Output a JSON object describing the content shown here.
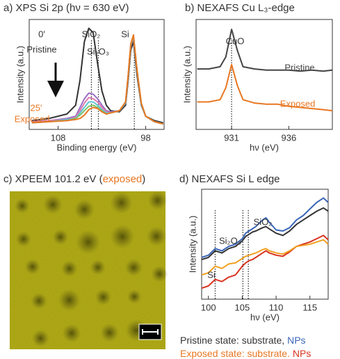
{
  "chart_data": [
    {
      "type": "line",
      "title": "a) XPS Si 2p (hν = 630 eV)",
      "xlabel": "Binding energy (eV)",
      "ylabel": "Intensity (a.u.)",
      "xlim": [
        111.3,
        95.9
      ],
      "xticks": [
        108,
        98
      ],
      "ylim": [
        0,
        100
      ],
      "vlines": [
        104.2,
        103.4,
        99.3
      ],
      "x": [
        111,
        109,
        107,
        106,
        105.5,
        105,
        104.5,
        104,
        103.5,
        103,
        102.5,
        102,
        101,
        100.3,
        100,
        99.7,
        99.4,
        99,
        98.5,
        98,
        97,
        96
      ],
      "series": [
        {
          "color": "#333333",
          "values": [
            8,
            10,
            14,
            22,
            45,
            80,
            92,
            88,
            60,
            35,
            22,
            17,
            16,
            22,
            45,
            72,
            80,
            50,
            22,
            12,
            8,
            6
          ]
        },
        {
          "color": "#9b6fc4",
          "values": [
            7,
            8,
            10,
            12,
            20,
            28,
            33,
            32,
            28,
            22,
            17,
            16,
            17,
            24,
            48,
            76,
            84,
            54,
            23,
            12,
            7,
            5
          ]
        },
        {
          "color": "#e07ab0",
          "values": [
            7,
            8,
            9,
            11,
            17,
            24,
            29,
            28,
            25,
            20,
            16,
            15,
            17,
            24,
            48,
            76,
            84,
            54,
            23,
            12,
            7,
            5
          ]
        },
        {
          "color": "#5fc4d0",
          "values": [
            6,
            7,
            9,
            10,
            15,
            20,
            25,
            25,
            22,
            18,
            15,
            15,
            17,
            24,
            49,
            77,
            85,
            54,
            23,
            12,
            7,
            5
          ]
        },
        {
          "color": "#7cc46a",
          "values": [
            6,
            7,
            8,
            10,
            13,
            17,
            21,
            22,
            20,
            17,
            14,
            15,
            17,
            25,
            49,
            77,
            85,
            55,
            24,
            12,
            7,
            5
          ]
        },
        {
          "color": "#e87722",
          "values": [
            6,
            7,
            8,
            9,
            10,
            13,
            18,
            20,
            19,
            16,
            14,
            15,
            17,
            25,
            50,
            78,
            86,
            55,
            24,
            12,
            7,
            5
          ]
        }
      ],
      "annotations": [
        {
          "text": "0'",
          "color": "#333333"
        },
        {
          "text": "Pristine",
          "color": "#333333"
        },
        {
          "text": "25'",
          "color": "#e87722"
        },
        {
          "text": "Exposed",
          "color": "#e87722"
        },
        {
          "text": "SiO₂",
          "color": "#333333"
        },
        {
          "text": "Si₂O₃",
          "color": "#333333"
        },
        {
          "text": "Si",
          "color": "#333333"
        }
      ]
    },
    {
      "type": "line",
      "title": "b) NEXAFS Cu L₃-edge",
      "xlabel": "hν (eV)",
      "ylabel": "Intensity (a.u.)",
      "xlim": [
        927.9,
        939.8
      ],
      "xticks": [
        931,
        936
      ],
      "ylim": [
        0,
        100
      ],
      "vlines": [
        931
      ],
      "x": [
        928,
        929,
        930,
        930.5,
        931,
        931.5,
        932,
        933,
        934,
        935,
        936,
        937,
        938,
        939,
        939.8
      ],
      "series": [
        {
          "color": "#444444",
          "values": [
            55,
            55,
            57,
            66,
            91,
            72,
            57,
            55,
            54,
            54,
            54,
            53,
            54,
            53,
            54
          ]
        },
        {
          "color": "#e87722",
          "values": [
            25,
            25,
            27,
            38,
            59,
            40,
            27,
            24,
            23,
            23,
            21,
            20,
            19,
            18,
            17
          ]
        }
      ],
      "annotations": [
        {
          "text": "CuO",
          "color": "#333333"
        },
        {
          "text": "Pristine",
          "color": "#444444"
        },
        {
          "text": "Exposed",
          "color": "#e87722"
        }
      ]
    },
    {
      "type": "image",
      "title_parts": [
        {
          "text": "c) XPEEM 101.2 eV (",
          "color": "#333333"
        },
        {
          "text": "exposed",
          "color": "#e87722"
        },
        {
          "text": ")",
          "color": "#333333"
        }
      ]
    },
    {
      "type": "line",
      "title": "d) NEXAFS Si L edge",
      "xlabel": "hν (eV)",
      "ylabel": "Intensity (a.u.)",
      "xlim": [
        99,
        117.7
      ],
      "xticks": [
        100,
        105,
        110,
        115
      ],
      "ylim": [
        0,
        100
      ],
      "vlines": [
        101,
        105.1,
        105.9
      ],
      "x": [
        99,
        100,
        101,
        102,
        103,
        104,
        105,
        105.5,
        106,
        106.5,
        107,
        108,
        108.5,
        109,
        110,
        111,
        112,
        113,
        114,
        115,
        116,
        117,
        117.7
      ],
      "series": [
        {
          "color": "#3a66b8",
          "values": [
            38,
            40,
            46,
            44,
            48,
            50,
            55,
            60,
            62,
            64,
            66,
            72,
            74,
            70,
            63,
            62,
            65,
            72,
            76,
            82,
            88,
            92,
            88
          ]
        },
        {
          "color": "#333333",
          "values": [
            36,
            38,
            44,
            42,
            46,
            48,
            53,
            57,
            59,
            61,
            62,
            65,
            66,
            64,
            60,
            58,
            62,
            68,
            72,
            76,
            80,
            83,
            80
          ]
        },
        {
          "color": "#d9331f",
          "values": [
            10,
            12,
            18,
            16,
            20,
            22,
            30,
            33,
            35,
            36,
            38,
            42,
            44,
            42,
            40,
            39,
            43,
            48,
            50,
            52,
            55,
            58,
            54
          ]
        },
        {
          "color": "#f0a020",
          "values": [
            22,
            24,
            30,
            28,
            32,
            33,
            37,
            39,
            40,
            41,
            42,
            45,
            46,
            44,
            42,
            41,
            44,
            48,
            49,
            50,
            52,
            54,
            50
          ]
        }
      ],
      "annotations": [
        {
          "text": "Si",
          "color": "#333333"
        },
        {
          "text": "Si₂O₃",
          "color": "#333333"
        },
        {
          "text": "SiO₂",
          "color": "#333333"
        }
      ]
    }
  ],
  "legend": [
    [
      {
        "text": "Pristine state: substrate, ",
        "color": "#333333"
      },
      {
        "text": "NPs",
        "color": "#3a66b8"
      }
    ],
    [
      {
        "text": "Exposed state: substrate. ",
        "color": "#e87722"
      },
      {
        "text": "NPs",
        "color": "#d9331f"
      }
    ]
  ]
}
